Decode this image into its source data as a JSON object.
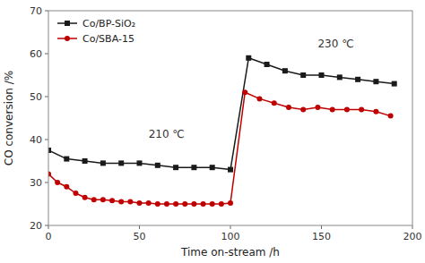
{
  "chart_data": {
    "type": "line",
    "xlabel": "Time on-stream /h",
    "ylabel": "CO conversion /%",
    "xlim": [
      0,
      200
    ],
    "ylim": [
      20,
      70
    ],
    "xticks": [
      0,
      50,
      100,
      150,
      200
    ],
    "yticks": [
      20,
      30,
      40,
      50,
      60,
      70
    ],
    "grid": false,
    "legend": "upper left",
    "series": [
      {
        "name": "Co/BP-SiO₂",
        "color": "#1a1a1a",
        "marker": "square",
        "x": [
          0,
          10,
          20,
          30,
          40,
          50,
          60,
          70,
          80,
          90,
          100,
          110,
          120,
          130,
          140,
          150,
          160,
          170,
          180,
          190
        ],
        "values": [
          37.5,
          35.5,
          35.0,
          34.5,
          34.5,
          34.5,
          34.0,
          33.5,
          33.5,
          33.5,
          33.0,
          59.0,
          57.5,
          56.0,
          55.0,
          55.0,
          54.5,
          54.0,
          53.5,
          53.0
        ]
      },
      {
        "name": "Co/SBA-15",
        "color": "#c00000",
        "marker": "circle",
        "x": [
          0,
          5,
          10,
          15,
          20,
          25,
          30,
          35,
          40,
          45,
          50,
          55,
          60,
          65,
          70,
          75,
          80,
          85,
          90,
          95,
          100,
          108,
          116,
          124,
          132,
          140,
          148,
          156,
          164,
          172,
          180,
          188
        ],
        "values": [
          32.0,
          30.0,
          29.0,
          27.5,
          26.5,
          26.0,
          26.0,
          25.8,
          25.5,
          25.5,
          25.2,
          25.2,
          25.0,
          25.0,
          25.0,
          25.0,
          25.0,
          25.0,
          25.0,
          25.0,
          25.2,
          51.0,
          49.5,
          48.5,
          47.5,
          47.0,
          47.5,
          47.0,
          47.0,
          47.0,
          46.5,
          45.5
        ]
      }
    ],
    "annotations": [
      {
        "text": "210 ℃",
        "x": 55,
        "y": 40.5
      },
      {
        "text": "230 ℃",
        "x": 148,
        "y": 61.5
      }
    ]
  }
}
